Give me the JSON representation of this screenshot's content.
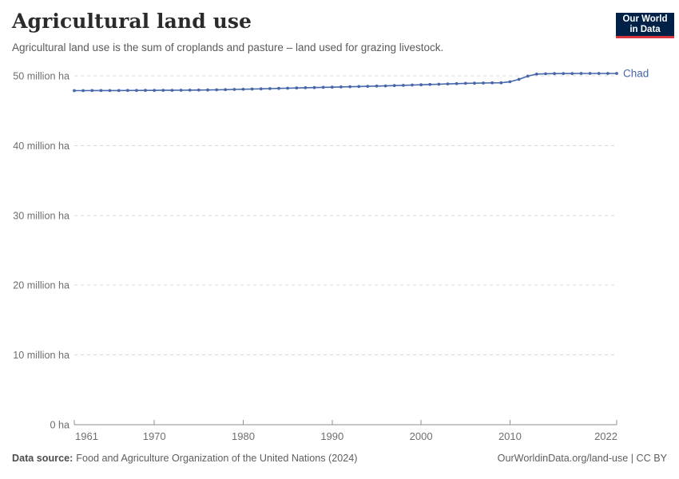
{
  "header": {
    "title": "Agricultural land use",
    "subtitle": "Agricultural land use is the sum of croplands and pasture – land used for grazing livestock.",
    "logo": {
      "line1": "Our World",
      "line2": "in Data",
      "bg_color": "#002147",
      "accent_color": "#d8353f"
    }
  },
  "chart_data": {
    "type": "line",
    "title": "Agricultural land use",
    "unit": "million ha",
    "grid": "horizontal-dashed",
    "legend_position": "end-of-line-label",
    "xlim": [
      1961,
      2022
    ],
    "ylim": [
      0,
      52
    ],
    "x_ticks": [
      1961,
      1970,
      1980,
      1990,
      2000,
      2010,
      2022
    ],
    "y_ticks": [
      {
        "value": 0,
        "label": "0 ha"
      },
      {
        "value": 10,
        "label": "10 million ha"
      },
      {
        "value": 20,
        "label": "20 million ha"
      },
      {
        "value": 30,
        "label": "30 million ha"
      },
      {
        "value": 40,
        "label": "40 million ha"
      },
      {
        "value": 50,
        "label": "50 million ha"
      }
    ],
    "x": [
      1961,
      1962,
      1963,
      1964,
      1965,
      1966,
      1967,
      1968,
      1969,
      1970,
      1971,
      1972,
      1973,
      1974,
      1975,
      1976,
      1977,
      1978,
      1979,
      1980,
      1981,
      1982,
      1983,
      1984,
      1985,
      1986,
      1987,
      1988,
      1989,
      1990,
      1991,
      1992,
      1993,
      1994,
      1995,
      1996,
      1997,
      1998,
      1999,
      2000,
      2001,
      2002,
      2003,
      2004,
      2005,
      2006,
      2007,
      2008,
      2009,
      2010,
      2011,
      2012,
      2013,
      2014,
      2015,
      2016,
      2017,
      2018,
      2019,
      2020,
      2021,
      2022
    ],
    "series": [
      {
        "name": "Chad",
        "color": "#4767ab",
        "values": [
          47.88,
          47.88,
          47.89,
          47.89,
          47.9,
          47.9,
          47.91,
          47.91,
          47.92,
          47.92,
          47.93,
          47.93,
          47.94,
          47.95,
          47.96,
          47.98,
          48.0,
          48.02,
          48.05,
          48.08,
          48.11,
          48.14,
          48.17,
          48.2,
          48.23,
          48.26,
          48.29,
          48.32,
          48.35,
          48.38,
          48.41,
          48.44,
          48.47,
          48.5,
          48.53,
          48.56,
          48.6,
          48.64,
          48.68,
          48.72,
          48.76,
          48.8,
          48.84,
          48.88,
          48.92,
          48.95,
          48.97,
          48.99,
          49.0,
          49.15,
          49.5,
          49.95,
          50.25,
          50.3,
          50.32,
          50.33,
          50.33,
          50.34,
          50.34,
          50.34,
          50.34,
          50.34
        ]
      }
    ],
    "colors": {
      "gridline": "#d9d9d9",
      "axis": "#8f8f8f",
      "tick_label": "#6e6e6e"
    }
  },
  "footer": {
    "source_label": "Data source:",
    "source_text": "Food and Agriculture Organization of the United Nations (2024)",
    "credit": "OurWorldinData.org/land-use | CC BY"
  }
}
